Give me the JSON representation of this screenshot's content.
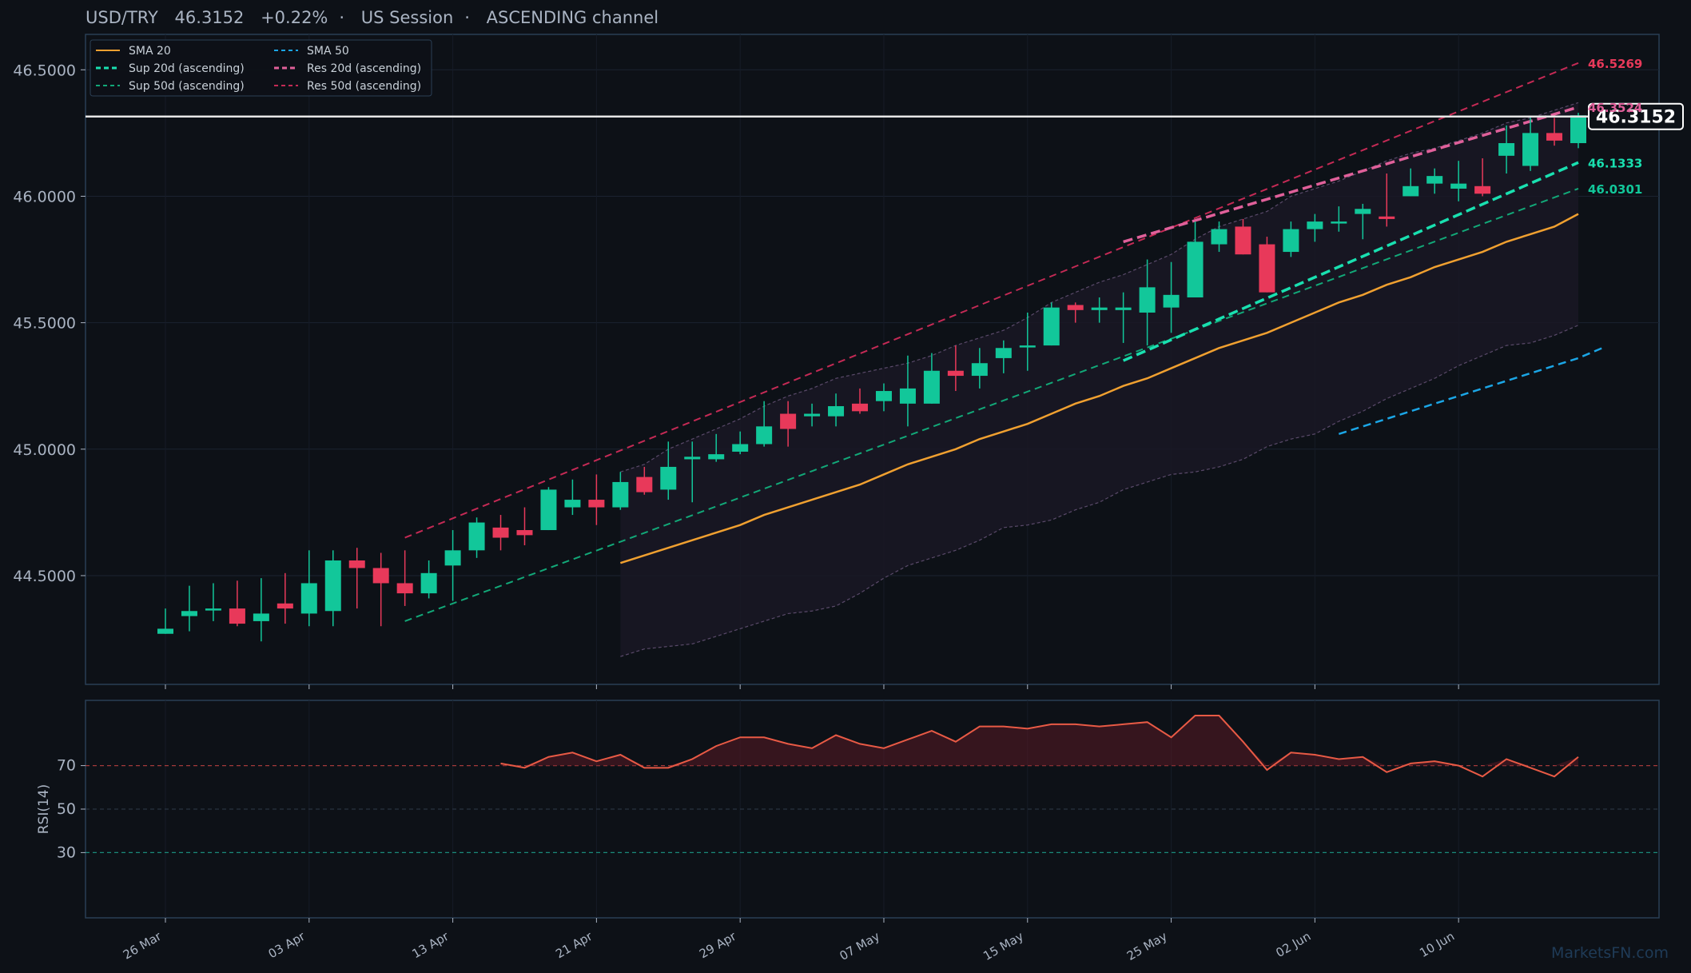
{
  "header": {
    "pair": "USD/TRY",
    "price": "46.3152",
    "change": "+0.22%",
    "sep": "·",
    "session": "US Session",
    "pattern": "ASCENDING channel"
  },
  "watermark": "MarketsFN.com",
  "colors": {
    "background": "#0d1117",
    "panel_border": "#2a3f55",
    "up": "#12c79a",
    "down": "#e8395a",
    "sma20": "#f0a030",
    "sma50": "#1ba6e6",
    "sup20": "#19e0b0",
    "sup50": "#12a878",
    "res20": "#e0609a",
    "res50": "#c42a55",
    "rsi": "#e85a45",
    "bb": "#5a4a6a"
  },
  "chart_data": [
    {
      "type": "candlestick",
      "title": "USD/TRY   46.3152   +0.22%  ·  US Session  ·  ASCENDING channel",
      "ylim": [
        44.07,
        46.64
      ],
      "y_ticks": [
        "44.5000",
        "45.0000",
        "45.5000",
        "46.0000",
        "46.5000"
      ],
      "x_ticks": [
        "26 Mar",
        "03 Apr",
        "13 Apr",
        "21 Apr",
        "29 Apr",
        "07 May",
        "15 May",
        "25 May",
        "02 Jun",
        "10 Jun"
      ],
      "x_tick_index": [
        0,
        6,
        12,
        18,
        24,
        30,
        36,
        42,
        48,
        54
      ],
      "grid": true,
      "legend_position": "top-left",
      "legend": [
        {
          "label": "SMA 20",
          "style": "solid",
          "color": "#f0a030"
        },
        {
          "label": "SMA 50",
          "style": "dashed",
          "color": "#1ba6e6"
        },
        {
          "label": "Sup 20d (ascending)",
          "style": "dashed-bold",
          "color": "#19e0b0"
        },
        {
          "label": "Res 20d (ascending)",
          "style": "dashed-bold",
          "color": "#e0609a"
        },
        {
          "label": "Sup 50d (ascending)",
          "style": "dashed",
          "color": "#12a878"
        },
        {
          "label": "Res 50d (ascending)",
          "style": "dashed",
          "color": "#c42a55"
        }
      ],
      "candles": [
        {
          "o": 44.27,
          "h": 44.37,
          "l": 44.27,
          "c": 44.29
        },
        {
          "o": 44.34,
          "h": 44.46,
          "l": 44.28,
          "c": 44.36
        },
        {
          "o": 44.37,
          "h": 44.47,
          "l": 44.32,
          "c": 44.37
        },
        {
          "o": 44.37,
          "h": 44.48,
          "l": 44.3,
          "c": 44.31
        },
        {
          "o": 44.32,
          "h": 44.49,
          "l": 44.24,
          "c": 44.35
        },
        {
          "o": 44.39,
          "h": 44.51,
          "l": 44.31,
          "c": 44.37
        },
        {
          "o": 44.35,
          "h": 44.6,
          "l": 44.3,
          "c": 44.47
        },
        {
          "o": 44.36,
          "h": 44.6,
          "l": 44.3,
          "c": 44.56
        },
        {
          "o": 44.56,
          "h": 44.61,
          "l": 44.37,
          "c": 44.53
        },
        {
          "o": 44.53,
          "h": 44.59,
          "l": 44.3,
          "c": 44.47
        },
        {
          "o": 44.47,
          "h": 44.6,
          "l": 44.38,
          "c": 44.43
        },
        {
          "o": 44.43,
          "h": 44.56,
          "l": 44.41,
          "c": 44.51
        },
        {
          "o": 44.54,
          "h": 44.68,
          "l": 44.4,
          "c": 44.6
        },
        {
          "o": 44.6,
          "h": 44.73,
          "l": 44.57,
          "c": 44.71
        },
        {
          "o": 44.69,
          "h": 44.74,
          "l": 44.6,
          "c": 44.65
        },
        {
          "o": 44.68,
          "h": 44.77,
          "l": 44.62,
          "c": 44.66
        },
        {
          "o": 44.68,
          "h": 44.85,
          "l": 44.68,
          "c": 44.84
        },
        {
          "o": 44.77,
          "h": 44.88,
          "l": 44.74,
          "c": 44.8
        },
        {
          "o": 44.8,
          "h": 44.9,
          "l": 44.7,
          "c": 44.77
        },
        {
          "o": 44.77,
          "h": 44.91,
          "l": 44.76,
          "c": 44.87
        },
        {
          "o": 44.89,
          "h": 44.93,
          "l": 44.82,
          "c": 44.83
        },
        {
          "o": 44.84,
          "h": 45.03,
          "l": 44.8,
          "c": 44.93
        },
        {
          "o": 44.96,
          "h": 45.03,
          "l": 44.79,
          "c": 44.97
        },
        {
          "o": 44.96,
          "h": 45.06,
          "l": 44.95,
          "c": 44.98
        },
        {
          "o": 44.99,
          "h": 45.07,
          "l": 44.98,
          "c": 45.02
        },
        {
          "o": 45.02,
          "h": 45.19,
          "l": 45.01,
          "c": 45.09
        },
        {
          "o": 45.14,
          "h": 45.19,
          "l": 45.01,
          "c": 45.08
        },
        {
          "o": 45.13,
          "h": 45.18,
          "l": 45.09,
          "c": 45.14
        },
        {
          "o": 45.13,
          "h": 45.22,
          "l": 45.09,
          "c": 45.17
        },
        {
          "o": 45.18,
          "h": 45.24,
          "l": 45.14,
          "c": 45.15
        },
        {
          "o": 45.19,
          "h": 45.26,
          "l": 45.15,
          "c": 45.23
        },
        {
          "o": 45.18,
          "h": 45.37,
          "l": 45.09,
          "c": 45.24
        },
        {
          "o": 45.18,
          "h": 45.38,
          "l": 45.18,
          "c": 45.31
        },
        {
          "o": 45.31,
          "h": 45.41,
          "l": 45.23,
          "c": 45.29
        },
        {
          "o": 45.29,
          "h": 45.4,
          "l": 45.24,
          "c": 45.34
        },
        {
          "o": 45.36,
          "h": 45.43,
          "l": 45.3,
          "c": 45.4
        },
        {
          "o": 45.41,
          "h": 45.54,
          "l": 45.31,
          "c": 45.41
        },
        {
          "o": 45.41,
          "h": 45.58,
          "l": 45.41,
          "c": 45.56
        },
        {
          "o": 45.57,
          "h": 45.58,
          "l": 45.5,
          "c": 45.55
        },
        {
          "o": 45.55,
          "h": 45.6,
          "l": 45.5,
          "c": 45.56
        },
        {
          "o": 45.55,
          "h": 45.62,
          "l": 45.42,
          "c": 45.56
        },
        {
          "o": 45.54,
          "h": 45.75,
          "l": 45.41,
          "c": 45.64
        },
        {
          "o": 45.56,
          "h": 45.74,
          "l": 45.46,
          "c": 45.61
        },
        {
          "o": 45.6,
          "h": 45.9,
          "l": 45.6,
          "c": 45.82
        },
        {
          "o": 45.81,
          "h": 45.9,
          "l": 45.78,
          "c": 45.87
        },
        {
          "o": 45.88,
          "h": 45.91,
          "l": 45.77,
          "c": 45.77
        },
        {
          "o": 45.81,
          "h": 45.84,
          "l": 45.62,
          "c": 45.62
        },
        {
          "o": 45.78,
          "h": 45.9,
          "l": 45.76,
          "c": 45.87
        },
        {
          "o": 45.87,
          "h": 45.93,
          "l": 45.82,
          "c": 45.9
        },
        {
          "o": 45.9,
          "h": 45.96,
          "l": 45.86,
          "c": 45.9
        },
        {
          "o": 45.93,
          "h": 45.97,
          "l": 45.83,
          "c": 45.95
        },
        {
          "o": 45.92,
          "h": 46.09,
          "l": 45.88,
          "c": 45.91
        },
        {
          "o": 46.0,
          "h": 46.11,
          "l": 46.0,
          "c": 46.04
        },
        {
          "o": 46.05,
          "h": 46.11,
          "l": 46.01,
          "c": 46.08
        },
        {
          "o": 46.03,
          "h": 46.14,
          "l": 45.98,
          "c": 46.05
        },
        {
          "o": 46.04,
          "h": 46.15,
          "l": 46.0,
          "c": 46.01
        },
        {
          "o": 46.16,
          "h": 46.28,
          "l": 46.09,
          "c": 46.21
        },
        {
          "o": 46.12,
          "h": 46.31,
          "l": 46.1,
          "c": 46.25
        },
        {
          "o": 46.25,
          "h": 46.31,
          "l": 46.2,
          "c": 46.22
        },
        {
          "o": 46.21,
          "h": 46.33,
          "l": 46.19,
          "c": 46.32
        }
      ],
      "sma20": {
        "start": 19,
        "values": [
          44.55,
          44.58,
          44.61,
          44.64,
          44.67,
          44.7,
          44.74,
          44.77,
          44.8,
          44.83,
          44.86,
          44.9,
          44.94,
          44.97,
          45.0,
          45.04,
          45.07,
          45.1,
          45.14,
          45.18,
          45.21,
          45.25,
          45.28,
          45.32,
          45.36,
          45.4,
          45.43,
          45.46,
          45.5,
          45.54,
          45.58,
          45.61,
          45.65,
          45.68,
          45.72,
          45.75,
          45.78,
          45.82,
          45.85,
          45.88,
          45.93
        ]
      },
      "sma50": {
        "start": 49,
        "values": [
          45.06,
          45.09,
          45.12,
          45.15,
          45.18,
          45.21,
          45.24,
          45.27,
          45.3,
          45.33,
          45.36,
          45.4
        ]
      },
      "bb_upper": {
        "start": 19,
        "values": [
          44.91,
          44.94,
          45.0,
          45.04,
          45.08,
          45.12,
          45.17,
          45.21,
          45.24,
          45.28,
          45.3,
          45.32,
          45.34,
          45.37,
          45.41,
          45.44,
          45.47,
          45.52,
          45.58,
          45.62,
          45.66,
          45.69,
          45.73,
          45.77,
          45.83,
          45.88,
          45.91,
          45.94,
          46.0,
          46.03,
          46.06,
          46.1,
          46.14,
          46.17,
          46.19,
          46.22,
          46.25,
          46.29,
          46.31,
          46.34,
          46.37
        ]
      },
      "bb_lower": {
        "start": 19,
        "values": [
          44.18,
          44.21,
          44.22,
          44.23,
          44.26,
          44.29,
          44.32,
          44.35,
          44.36,
          44.38,
          44.43,
          44.49,
          44.54,
          44.57,
          44.6,
          44.64,
          44.69,
          44.7,
          44.72,
          44.76,
          44.79,
          44.84,
          44.87,
          44.9,
          44.91,
          44.93,
          44.96,
          45.01,
          45.04,
          45.06,
          45.11,
          45.15,
          45.2,
          45.24,
          45.28,
          45.33,
          45.37,
          45.41,
          45.42,
          45.45,
          45.49
        ]
      },
      "res50": {
        "x": [
          10,
          59
        ],
        "y": [
          44.65,
          46.5269
        ]
      },
      "sup50": {
        "x": [
          10,
          59
        ],
        "y": [
          44.32,
          46.0301
        ]
      },
      "res20": {
        "x": [
          40,
          59
        ],
        "y": [
          45.82,
          46.3524
        ]
      },
      "sup20": {
        "x": [
          40,
          59
        ],
        "y": [
          45.35,
          46.1333
        ]
      },
      "last_price": 46.3152,
      "price_labels": [
        {
          "text": "46.5269",
          "value": 46.5269,
          "color": "#e8395a"
        },
        {
          "text": "46.3524",
          "value": 46.3524,
          "color": "#e0609a"
        },
        {
          "text": "46.1333",
          "value": 46.1333,
          "color": "#19e0b0"
        },
        {
          "text": "46.0301",
          "value": 46.0301,
          "color": "#12c79a"
        }
      ],
      "last_price_label": "46.3152"
    },
    {
      "type": "line",
      "ylabel": "RSI(14)",
      "ylim": [
        0,
        100
      ],
      "y_ticks": [
        "30",
        "50",
        "70"
      ],
      "reference_lines": [
        70,
        50,
        30
      ],
      "x_start_index": 14,
      "values": [
        71,
        69,
        74,
        76,
        72,
        75,
        69,
        69,
        73,
        79,
        83,
        83,
        80,
        78,
        84,
        80,
        78,
        82,
        86,
        81,
        88,
        88,
        87,
        89,
        89,
        88,
        89,
        90,
        83,
        93,
        93,
        81,
        68,
        76,
        75,
        73,
        74,
        67,
        71,
        72,
        70,
        65,
        73,
        69,
        65,
        74
      ]
    }
  ]
}
